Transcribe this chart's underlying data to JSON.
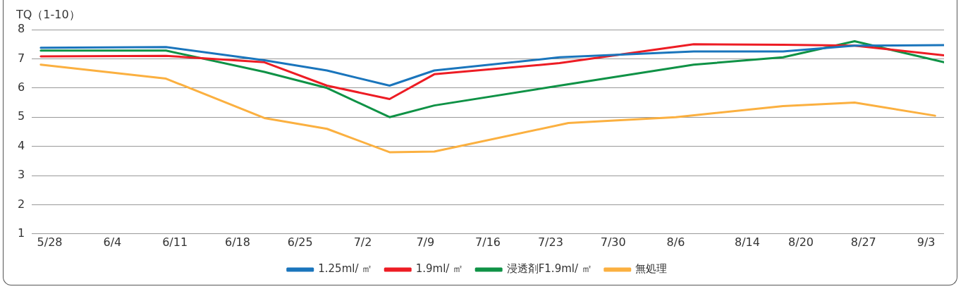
{
  "chart_data": {
    "type": "line",
    "ylabel": "TQ（1-10）",
    "xlim": [
      "--05-26",
      "--09-05"
    ],
    "xticks": [
      {
        "value": "--05-28",
        "label": "5/28"
      },
      {
        "value": "--06-04",
        "label": "6/4"
      },
      {
        "value": "--06-11",
        "label": "6/11"
      },
      {
        "value": "--06-18",
        "label": "6/18"
      },
      {
        "value": "--06-25",
        "label": "6/25"
      },
      {
        "value": "--07-02",
        "label": "7/2"
      },
      {
        "value": "--07-09",
        "label": "7/9"
      },
      {
        "value": "--07-16",
        "label": "7/16"
      },
      {
        "value": "--07-23",
        "label": "7/23"
      },
      {
        "value": "--07-30",
        "label": "7/30"
      },
      {
        "value": "--08-06",
        "label": "8/6"
      },
      {
        "value": "--08-14",
        "label": "8/14"
      },
      {
        "value": "--08-20",
        "label": "8/20"
      },
      {
        "value": "--08-27",
        "label": "8/27"
      },
      {
        "value": "--09-03",
        "label": "9/3"
      }
    ],
    "ylim": [
      1,
      8
    ],
    "yticks": [
      1,
      2,
      3,
      4,
      5,
      6,
      7,
      8
    ],
    "grid": "y",
    "legend": "bottom",
    "marker": "none",
    "line_style": "solid",
    "series": [
      {
        "name": "1.25ml/ ㎡",
        "color": "#1a75bc",
        "x": [
          "--05-27",
          "--06-10",
          "--06-21",
          "--06-28",
          "--07-05",
          "--07-10",
          "--07-24",
          "--08-08",
          "--08-18",
          "--08-26",
          "--09-05"
        ],
        "values": [
          7.38,
          7.4,
          6.95,
          6.6,
          6.08,
          6.6,
          7.05,
          7.25,
          7.25,
          7.45,
          7.47
        ]
      },
      {
        "name": "1.9ml/ ㎡",
        "color": "#ed1c24",
        "x": [
          "--05-27",
          "--06-10",
          "--06-21",
          "--06-28",
          "--07-05",
          "--07-10",
          "--07-24",
          "--08-08",
          "--08-18",
          "--08-26",
          "--09-05"
        ],
        "values": [
          7.08,
          7.1,
          6.88,
          6.08,
          5.62,
          6.47,
          6.85,
          7.5,
          7.48,
          7.45,
          7.12
        ]
      },
      {
        "name": "浸透剤F1.9ml/ ㎡",
        "color": "#0f9246",
        "x": [
          "--05-27",
          "--06-10",
          "--06-21",
          "--06-28",
          "--07-05",
          "--07-10",
          "--07-24",
          "--08-08",
          "--08-18",
          "--08-26",
          "--09-05"
        ],
        "values": [
          7.28,
          7.28,
          6.55,
          6.0,
          5.0,
          5.4,
          6.08,
          6.8,
          7.05,
          7.6,
          6.88
        ]
      },
      {
        "name": "無処理",
        "color": "#fbb040",
        "x": [
          "--05-27",
          "--06-10",
          "--06-21",
          "--06-28",
          "--07-05",
          "--07-10",
          "--07-25",
          "--08-06",
          "--08-18",
          "--08-26",
          "--09-04"
        ],
        "values": [
          6.8,
          6.32,
          4.97,
          4.6,
          3.8,
          3.82,
          4.8,
          5.0,
          5.38,
          5.5,
          5.05
        ]
      }
    ]
  }
}
